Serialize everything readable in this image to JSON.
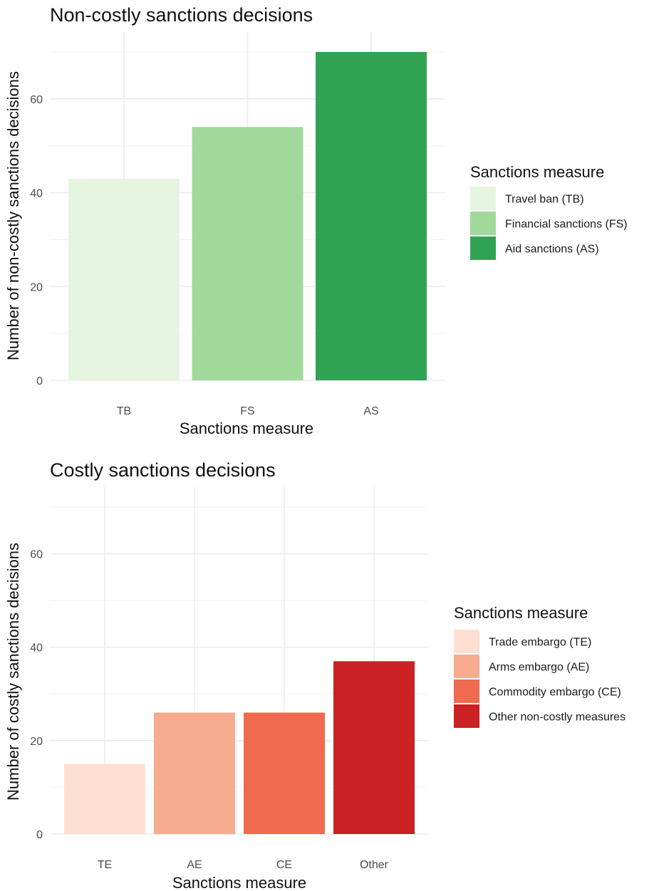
{
  "chart_data": [
    {
      "type": "bar",
      "title": "Non-costly sanctions decisions",
      "xlabel": "Sanctions measure",
      "ylabel": "Number of non-costly sanctions decisions",
      "categories": [
        "TB",
        "FS",
        "AS"
      ],
      "values": [
        43,
        54,
        70
      ],
      "colors": [
        "#e5f5e0",
        "#a1d99b",
        "#31a354"
      ],
      "ylim": [
        0,
        70
      ],
      "yticks": [
        0,
        20,
        40,
        60
      ],
      "grid": true,
      "legend": {
        "title": "Sanctions measure",
        "position": "right",
        "entries": [
          "Travel ban (TB)",
          "Financial sanctions (FS)",
          "Aid sanctions (AS)"
        ]
      }
    },
    {
      "type": "bar",
      "title": "Costly sanctions decisions",
      "xlabel": "Sanctions measure",
      "ylabel": "Number of costly sanctions decisions",
      "categories": [
        "TE",
        "AE",
        "CE",
        "Other"
      ],
      "values": [
        15,
        26,
        26,
        37
      ],
      "colors": [
        "#fee0d2",
        "#f7ab8f",
        "#ef6a4e",
        "#cb2122"
      ],
      "ylim": [
        0,
        70
      ],
      "yticks": [
        0,
        20,
        40,
        60
      ],
      "grid": true,
      "legend": {
        "title": "Sanctions measure",
        "position": "right",
        "entries": [
          "Trade embargo (TE)",
          "Arms embargo (AE)",
          "Commodity embargo (CE)",
          "Other non-costly measures"
        ]
      }
    }
  ]
}
